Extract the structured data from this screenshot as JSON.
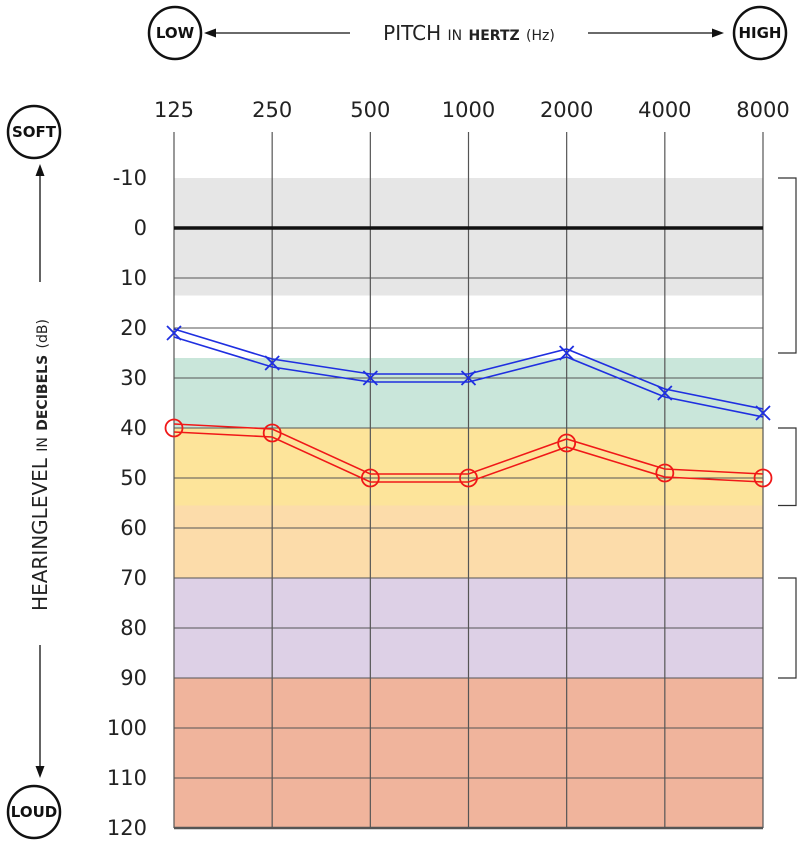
{
  "chart_data": {
    "type": "line",
    "x_axis": {
      "scale": "log",
      "label": {
        "pre": "PITCH",
        "small": "IN",
        "bold": "HERTZ",
        "unit": "(Hz)"
      },
      "ticks": [
        "125",
        "250",
        "500",
        "1000",
        "2000",
        "4000",
        "8000"
      ],
      "end_labels": {
        "left": "LOW",
        "right": "HIGH"
      }
    },
    "y_axis": {
      "reversed": true,
      "range": [
        -10,
        120
      ],
      "label": {
        "pre": "HEARINGLEVEL",
        "small": "IN",
        "bold": "DECIBELS",
        "unit": "(dB)"
      },
      "ticks": [
        "-10",
        "0",
        "10",
        "20",
        "30",
        "40",
        "50",
        "60",
        "70",
        "80",
        "90",
        "100",
        "110",
        "120"
      ],
      "end_labels": {
        "top": "SOFT",
        "bottom": "LOUD"
      }
    },
    "grid": true,
    "bands": [
      {
        "from": -10,
        "to": 13.5,
        "color": "#e6e6e6"
      },
      {
        "from": 26,
        "to": 40,
        "color": "#c9e6da"
      },
      {
        "from": 40,
        "to": 55.5,
        "color": "#fde49a"
      },
      {
        "from": 55.5,
        "to": 70,
        "color": "#fcdcaa"
      },
      {
        "from": 70,
        "to": 90,
        "color": "#ddd0e6"
      },
      {
        "from": 90,
        "to": 120,
        "color": "#f0b49c"
      }
    ],
    "brackets": [
      {
        "from": -10,
        "to": 25
      },
      {
        "from": 40,
        "to": 55.5
      },
      {
        "from": 70,
        "to": 90
      }
    ],
    "reference_line": {
      "value": 0,
      "color": "#111111"
    },
    "series": [
      {
        "marker": "x",
        "color": "#1f2fe0",
        "x": [
          125,
          250,
          500,
          1000,
          2000,
          4000,
          8000
        ],
        "y": [
          21,
          27,
          30,
          30,
          25,
          33,
          37
        ]
      },
      {
        "marker": "o",
        "color": "#f01818",
        "x": [
          125,
          250,
          500,
          1000,
          2000,
          4000,
          8000
        ],
        "y": [
          40,
          41,
          50,
          50,
          43,
          49,
          50
        ]
      }
    ]
  }
}
